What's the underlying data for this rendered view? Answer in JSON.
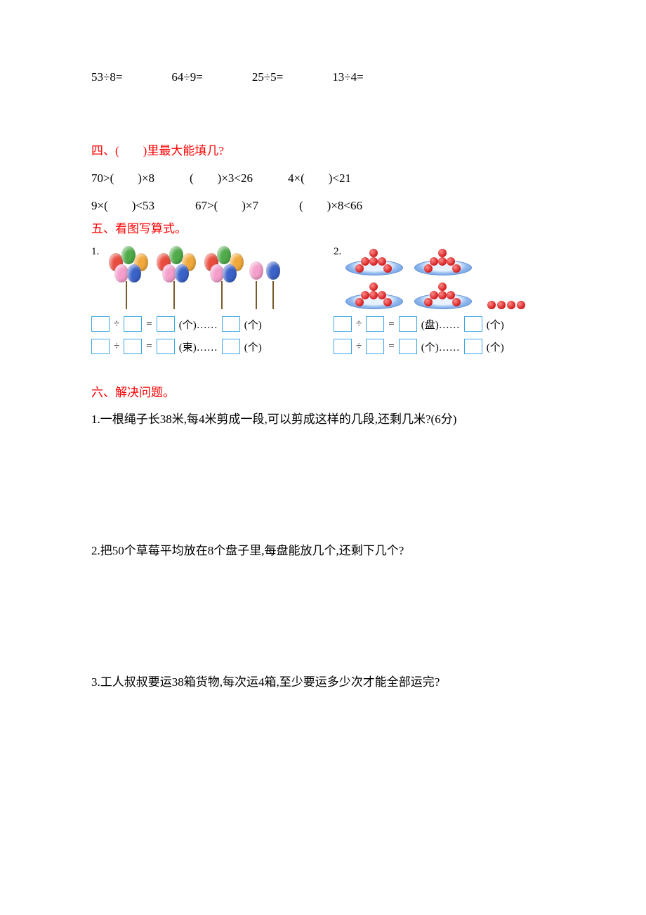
{
  "colors": {
    "heading": "#ff0000",
    "text": "#000000",
    "box_border": "#3aa7e6",
    "background": "#ffffff",
    "balloon_red": "#e94c3e",
    "balloon_green": "#4fab4a",
    "balloon_orange": "#f2a93c",
    "balloon_pink": "#f49ecb",
    "balloon_blue": "#3a62c8",
    "cherry": "#d21a1a",
    "plate": "#8fb8ee"
  },
  "top_problems": [
    "53÷8=",
    "64÷9=",
    "25÷5=",
    "13÷4="
  ],
  "section4": {
    "heading": "四、(　　)里最大能填几?",
    "rows": [
      [
        "70>(　　)×8",
        "(　　)×3<26",
        "4×(　　)<21"
      ],
      [
        "9×(　　)<53",
        "67>(　　)×7",
        "(　　)×8<66"
      ]
    ]
  },
  "section5": {
    "heading": "五、看图写算式。",
    "fig1": {
      "num": "1.",
      "balloons": {
        "bunches": 3,
        "bunch_colors": [
          [
            "#e94c3e",
            "#4fab4a",
            "#f2a93c",
            "#f49ecb",
            "#3a62c8"
          ],
          [
            "#e94c3e",
            "#4fab4a",
            "#f2a93c",
            "#f49ecb",
            "#3a62c8"
          ],
          [
            "#e94c3e",
            "#4fab4a",
            "#f2a93c",
            "#f49ecb",
            "#3a62c8"
          ]
        ],
        "extras_colors": [
          "#f49ecb",
          "#3a62c8"
        ]
      },
      "lines": [
        {
          "parts": [
            "box",
            "÷",
            "box",
            "=",
            "box",
            "(个)……",
            "box",
            "(个)"
          ]
        },
        {
          "parts": [
            "box",
            "÷",
            "box",
            "=",
            "box",
            "(束)……",
            "box",
            "(个)"
          ]
        }
      ]
    },
    "fig2": {
      "num": "2.",
      "plates": {
        "full_plates": 4,
        "cherries_per_plate": 6,
        "loose": 4
      },
      "lines": [
        {
          "parts": [
            "box",
            "÷",
            "box",
            "=",
            "box",
            "(盘)……",
            "box",
            "(个)"
          ]
        },
        {
          "parts": [
            "box",
            "÷",
            "box",
            "=",
            "box",
            "(个)……",
            "box",
            "(个)"
          ]
        }
      ]
    }
  },
  "section6": {
    "heading": "六、解决问题。",
    "problems": [
      "1.一根绳子长38米,每4米剪成一段,可以剪成这样的几段,还剩几米?(6分)",
      "2.把50个草莓平均放在8个盘子里,每盘能放几个,还剩下几个?",
      "3.工人叔叔要运38箱货物,每次运4箱,至少要运多少次才能全部运完?"
    ]
  }
}
